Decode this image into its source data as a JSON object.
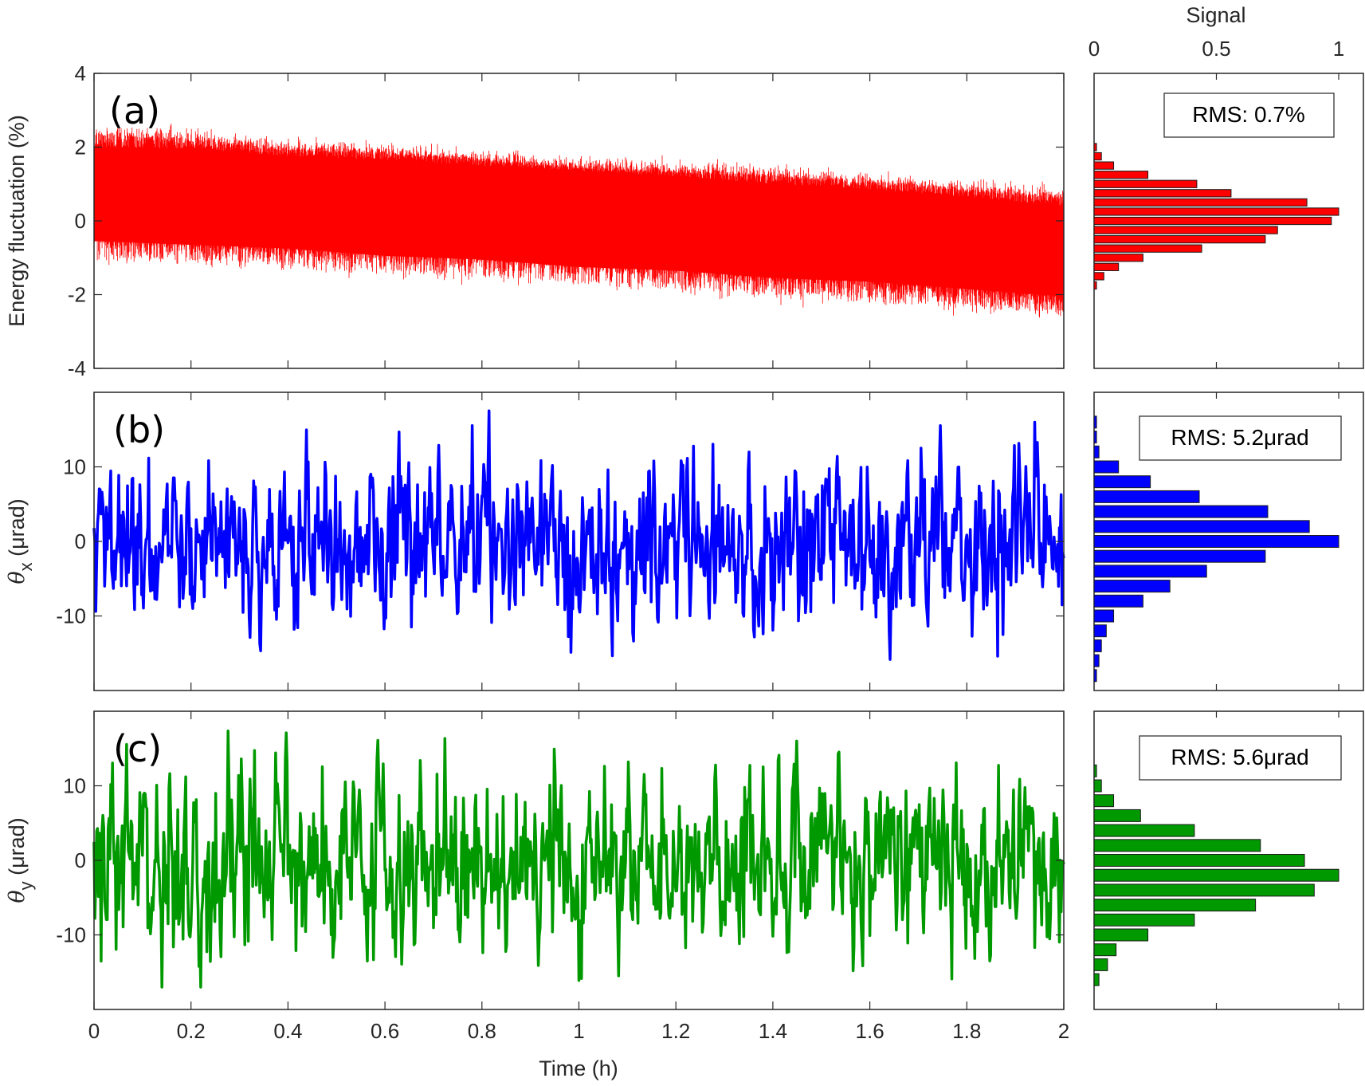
{
  "chart_data": [
    {
      "type": "line",
      "panel": "(a)",
      "title": "",
      "xlabel": "Time (h)",
      "ylabel": "Energy fluctuation (%)",
      "xlim": [
        0,
        2
      ],
      "ylim": [
        -4,
        4
      ],
      "xticks": [
        "0",
        "0.2",
        "0.4",
        "0.6",
        "0.8",
        "1",
        "1.2",
        "1.4",
        "1.6",
        "1.8",
        "2"
      ],
      "yticks": [
        "4",
        "2",
        "0",
        "-2",
        "-4"
      ],
      "color": "#ff0000",
      "series": [
        {
          "name": "Energy fluctuation",
          "description": "dense noisy band, mean drifting from ~0.8 at t=0 to ~-0.8 at t=2, band half-width ~1.2",
          "x": [
            0,
            0.2,
            0.4,
            0.6,
            0.8,
            1.0,
            1.2,
            1.4,
            1.6,
            1.8,
            2.0
          ],
          "mean": [
            0.8,
            0.75,
            0.55,
            0.45,
            0.3,
            0.15,
            0.0,
            -0.2,
            -0.35,
            -0.55,
            -0.8
          ],
          "upper": [
            2.3,
            2.2,
            1.9,
            1.8,
            1.6,
            1.4,
            1.3,
            1.2,
            1.0,
            0.8,
            0.6
          ],
          "lower": [
            -0.9,
            -1.0,
            -1.1,
            -1.3,
            -1.4,
            -1.6,
            -1.7,
            -1.9,
            -2.0,
            -2.2,
            -2.4
          ]
        }
      ],
      "grid": false
    },
    {
      "type": "bar",
      "panel": "(a) histogram",
      "orientation": "horizontal",
      "xlabel": "Signal",
      "xlim": [
        0,
        1
      ],
      "xticks": [
        "0",
        "0.5",
        "1"
      ],
      "annotation": "RMS: 0.7%",
      "color": "#ff0000",
      "bin_centers": [
        2.0,
        1.75,
        1.5,
        1.25,
        1.0,
        0.75,
        0.5,
        0.25,
        0.0,
        -0.25,
        -0.5,
        -0.75,
        -1.0,
        -1.25,
        -1.5,
        -1.75
      ],
      "values": [
        0.01,
        0.03,
        0.08,
        0.22,
        0.42,
        0.56,
        0.87,
        1.0,
        0.97,
        0.75,
        0.7,
        0.44,
        0.2,
        0.1,
        0.04,
        0.01
      ]
    },
    {
      "type": "line",
      "panel": "(b)",
      "xlabel": "Time (h)",
      "ylabel": "θx (μrad)",
      "xlim": [
        0,
        2
      ],
      "ylim": [
        -20,
        20
      ],
      "yticks": [
        "10",
        "0",
        "-10"
      ],
      "color": "#0000ff",
      "series": [
        {
          "name": "theta_x",
          "description": "noisy signal around 0, range approx -15 to 18"
        }
      ]
    },
    {
      "type": "bar",
      "panel": "(b) histogram",
      "orientation": "horizontal",
      "xlim": [
        0,
        1
      ],
      "annotation": "RMS: 5.2μrad",
      "color": "#0000ff",
      "bin_centers": [
        16,
        14,
        12,
        10,
        8,
        6,
        4,
        2,
        0,
        -2,
        -4,
        -6,
        -8,
        -10,
        -12,
        -14,
        -16,
        -18
      ],
      "values": [
        0.01,
        0.01,
        0.02,
        0.1,
        0.23,
        0.43,
        0.71,
        0.88,
        1.0,
        0.7,
        0.46,
        0.31,
        0.2,
        0.08,
        0.05,
        0.03,
        0.02,
        0.01
      ]
    },
    {
      "type": "line",
      "panel": "(c)",
      "xlabel": "Time (h)",
      "ylabel": "θy (μrad)",
      "xlim": [
        0,
        2
      ],
      "ylim": [
        -20,
        20
      ],
      "yticks": [
        "10",
        "0",
        "-10"
      ],
      "color": "#009900",
      "series": [
        {
          "name": "theta_y",
          "description": "noisy signal around 0, range approx -18 to 19"
        }
      ]
    },
    {
      "type": "bar",
      "panel": "(c) histogram",
      "orientation": "horizontal",
      "xlim": [
        0,
        1
      ],
      "annotation": "RMS: 5.6μrad",
      "color": "#009900",
      "bin_centers": [
        12,
        10,
        8,
        6,
        4,
        2,
        0,
        -2,
        -4,
        -6,
        -8,
        -10,
        -12,
        -14,
        -16
      ],
      "values": [
        0.01,
        0.03,
        0.08,
        0.19,
        0.41,
        0.68,
        0.86,
        1.0,
        0.9,
        0.66,
        0.41,
        0.22,
        0.09,
        0.055,
        0.02
      ]
    }
  ],
  "labels": {
    "panel_a": "(a)",
    "panel_b": "(b)",
    "panel_c": "(c)",
    "xlabel": "Time (h)",
    "ylabel_a": "Energy fluctuation (%)",
    "ylabel_b_main": "θ",
    "ylabel_b_sub": "x",
    "ylabel_b_unit": " (μrad)",
    "ylabel_c_main": "θ",
    "ylabel_c_sub": "y",
    "ylabel_c_unit": " (μrad)",
    "hist_xlabel": "Signal",
    "rms_a": "RMS: 0.7%",
    "rms_b": "RMS: 5.2μrad",
    "rms_c": "RMS: 5.6μrad"
  },
  "ticks": {
    "x": [
      "0",
      "0.2",
      "0.4",
      "0.6",
      "0.8",
      "1",
      "1.2",
      "1.4",
      "1.6",
      "1.8",
      "2"
    ],
    "y_a": [
      "4",
      "2",
      "0",
      "-2",
      "-4"
    ],
    "y_bc": [
      "10",
      "0",
      "-10"
    ],
    "hist_x": [
      "0",
      "0.5",
      "1"
    ]
  },
  "colors": {
    "a": "#ff0000",
    "b": "#0000ff",
    "c": "#009900",
    "axis": "#262626"
  }
}
